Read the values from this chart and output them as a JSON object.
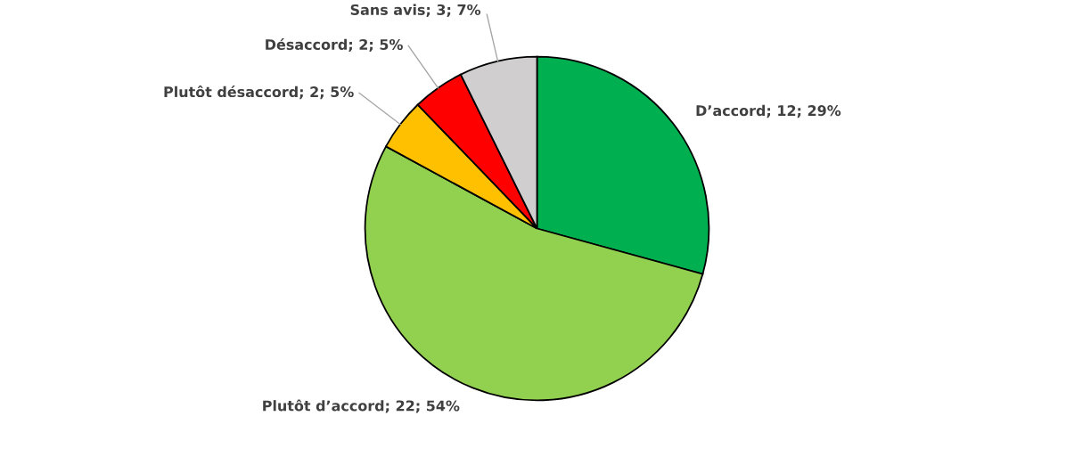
{
  "chart_data": {
    "type": "pie",
    "categories": [
      "D’accord",
      "Plutôt d’accord",
      "Plutôt désaccord",
      "Désaccord",
      "Sans avis"
    ],
    "values": [
      12,
      22,
      2,
      2,
      3
    ],
    "colors": [
      "#00b050",
      "#92d050",
      "#ffc000",
      "#ff0000",
      "#d0cece"
    ],
    "value_labels": [
      "12; 29%",
      "22; 54%",
      "2; 5%",
      "2; 5%",
      "3; 7%"
    ]
  }
}
